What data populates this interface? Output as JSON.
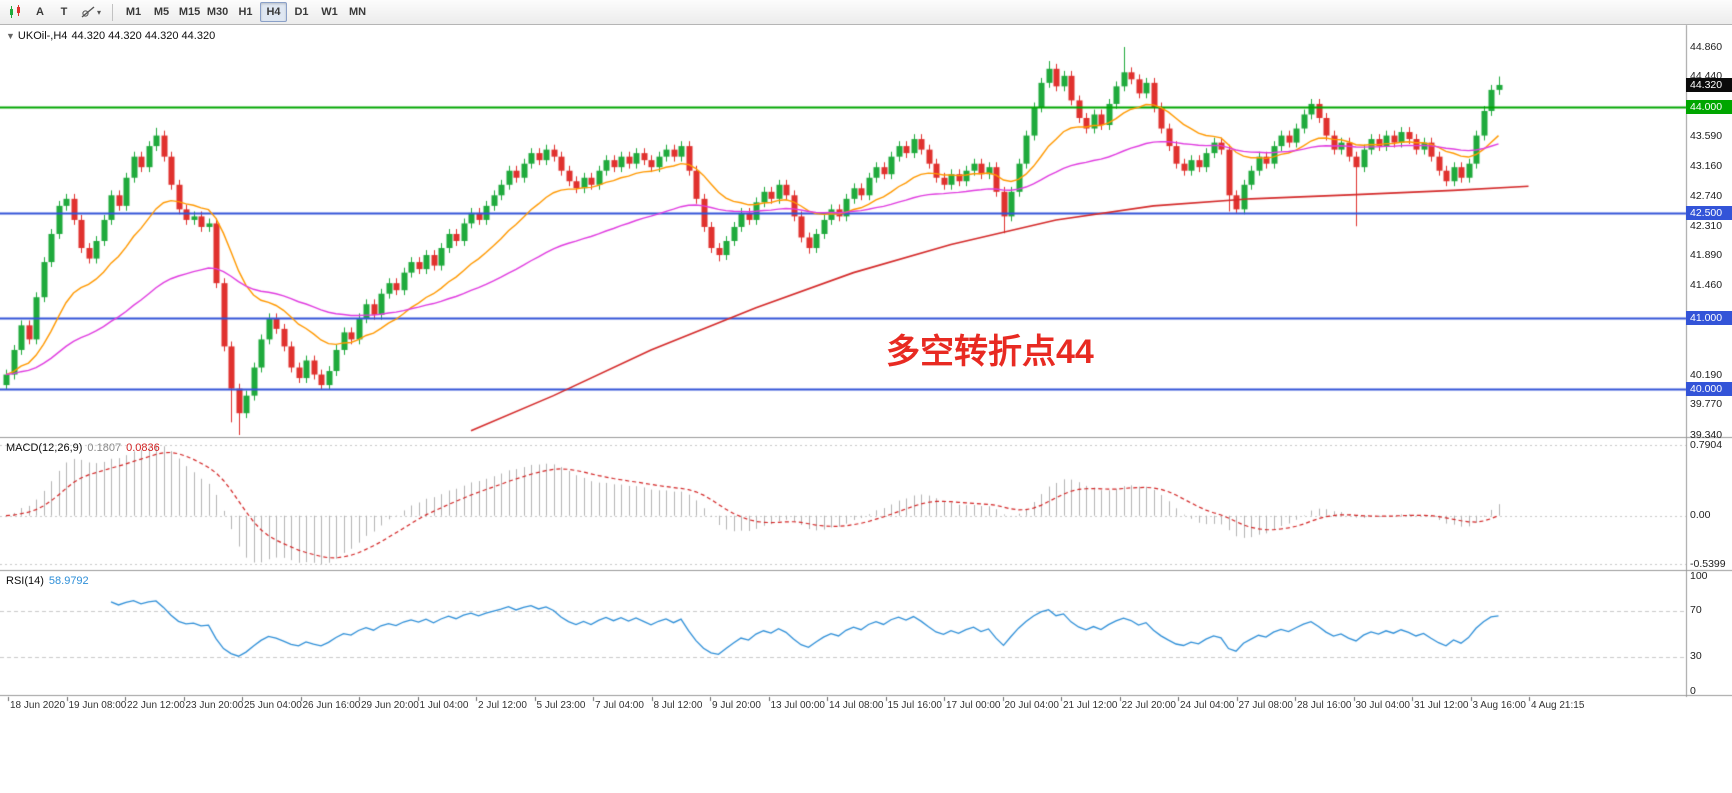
{
  "toolbar": {
    "tools": [
      {
        "name": "charts-icon",
        "type": "icon"
      },
      {
        "name": "text-tool",
        "type": "text",
        "label": "A"
      },
      {
        "name": "text-label-tool",
        "type": "text",
        "label": "T"
      },
      {
        "name": "shapes-tool",
        "type": "icon",
        "dropdown": true
      }
    ],
    "timeframes": [
      "M1",
      "M5",
      "M15",
      "M30",
      "H1",
      "H4",
      "D1",
      "W1",
      "MN"
    ],
    "active_timeframe": "H4"
  },
  "chart_header": {
    "symbol_label": "UKOil-,H4",
    "ohlc": "44.320 44.320 44.320 44.320"
  },
  "annotation": {
    "text": "多空转折点44",
    "color": "#e82a22"
  },
  "price_axis": {
    "ticks": [
      44.86,
      44.44,
      43.59,
      43.16,
      42.74,
      42.31,
      41.89,
      41.46,
      40.19,
      39.77,
      39.34
    ],
    "badges": [
      {
        "name": "last-price",
        "value": "44.320",
        "v": 44.32,
        "bg": "#0a0a0a",
        "fg": "#ffffff"
      },
      {
        "name": "level-44000",
        "value": "44.000",
        "v": 44.0,
        "bg": "#00a600",
        "fg": "#ffffff"
      },
      {
        "name": "level-42500",
        "value": "42.500",
        "v": 42.5,
        "bg": "#3354d8",
        "fg": "#ffffff"
      },
      {
        "name": "level-41000",
        "value": "41.000",
        "v": 41.0,
        "bg": "#3354d8",
        "fg": "#ffffff"
      },
      {
        "name": "level-40000",
        "value": "40.000",
        "v": 40.0,
        "bg": "#3354d8",
        "fg": "#ffffff"
      }
    ]
  },
  "chart_data": {
    "type": "candlestick",
    "title": "UKOil-,H4",
    "symbol": "UKOil-",
    "timeframe": "H4",
    "ylim": [
      39.31,
      45.15
    ],
    "bull_color": "#1faa3c",
    "bear_color": "#e0312e",
    "first_open": 40.05,
    "default_wick": 0.07,
    "closes": [
      40.2,
      40.55,
      40.9,
      40.7,
      41.3,
      41.8,
      42.2,
      42.6,
      42.7,
      42.4,
      42.0,
      41.85,
      42.1,
      42.4,
      42.75,
      42.6,
      43.0,
      43.3,
      43.15,
      43.45,
      43.6,
      43.3,
      42.9,
      42.55,
      42.4,
      42.45,
      42.3,
      42.35,
      41.5,
      40.6,
      40.0,
      39.65,
      39.9,
      40.3,
      40.7,
      41.0,
      40.85,
      40.6,
      40.3,
      40.15,
      40.4,
      40.2,
      40.05,
      40.25,
      40.55,
      40.8,
      40.7,
      41.0,
      41.2,
      41.05,
      41.35,
      41.5,
      41.4,
      41.65,
      41.8,
      41.7,
      41.9,
      41.75,
      42.0,
      42.2,
      42.1,
      42.35,
      42.5,
      42.4,
      42.6,
      42.75,
      42.9,
      43.1,
      43.0,
      43.2,
      43.35,
      43.25,
      43.4,
      43.3,
      43.1,
      42.95,
      42.85,
      43.0,
      42.9,
      43.1,
      43.25,
      43.15,
      43.3,
      43.2,
      43.35,
      43.25,
      43.15,
      43.3,
      43.4,
      43.3,
      43.45,
      43.1,
      42.7,
      42.3,
      42.0,
      41.9,
      42.1,
      42.3,
      42.5,
      42.4,
      42.65,
      42.8,
      42.7,
      42.9,
      42.75,
      42.45,
      42.15,
      42.0,
      42.2,
      42.4,
      42.55,
      42.45,
      42.7,
      42.85,
      42.75,
      43.0,
      43.15,
      43.05,
      43.3,
      43.45,
      43.35,
      43.55,
      43.4,
      43.2,
      43.0,
      42.9,
      43.05,
      42.95,
      43.1,
      43.2,
      43.05,
      43.15,
      42.8,
      42.45,
      42.8,
      43.2,
      43.6,
      44.0,
      44.35,
      44.55,
      44.3,
      44.45,
      44.1,
      43.85,
      43.7,
      43.9,
      43.75,
      44.05,
      44.3,
      44.5,
      44.4,
      44.2,
      44.35,
      44.0,
      43.7,
      43.45,
      43.2,
      43.1,
      43.25,
      43.15,
      43.35,
      43.5,
      43.4,
      42.75,
      42.55,
      42.9,
      43.1,
      43.3,
      43.2,
      43.45,
      43.6,
      43.5,
      43.7,
      43.9,
      44.05,
      43.85,
      43.6,
      43.4,
      43.5,
      43.3,
      43.15,
      43.4,
      43.55,
      43.45,
      43.6,
      43.5,
      43.65,
      43.55,
      43.4,
      43.5,
      43.3,
      43.1,
      42.95,
      43.15,
      43.0,
      43.2,
      43.6,
      43.95,
      44.25,
      44.32
    ],
    "extremes": [
      {
        "i": 20,
        "high": 43.71
      },
      {
        "i": 30,
        "low": 39.52
      },
      {
        "i": 31,
        "low": 39.34
      },
      {
        "i": 95,
        "low": 41.81
      },
      {
        "i": 107,
        "low": 41.92
      },
      {
        "i": 133,
        "low": 42.21
      },
      {
        "i": 139,
        "high": 44.66
      },
      {
        "i": 149,
        "high": 44.86
      },
      {
        "i": 163,
        "low": 42.52
      },
      {
        "i": 164,
        "low": 42.5
      },
      {
        "i": 180,
        "low": 42.31
      },
      {
        "i": 199,
        "high": 44.44
      }
    ],
    "levels": [
      {
        "v": 44.0,
        "color": "#00a600",
        "width": 2
      },
      {
        "v": 42.5,
        "color": "#3354d8",
        "width": 2
      },
      {
        "v": 41.0,
        "color": "#3354d8",
        "width": 2
      },
      {
        "v": 40.0,
        "color": "#3354d8",
        "width": 2
      }
    ],
    "moving_averages": [
      {
        "name": "fast-ma",
        "color": "#ff9900",
        "period": 16
      },
      {
        "name": "medium-ma",
        "color": "#e03ce0",
        "period": 50
      }
    ],
    "slow_ma": {
      "name": "slow-ma",
      "color": "#d42a2a",
      "points": [
        [
          62,
          39.4
        ],
        [
          73,
          39.9
        ],
        [
          86,
          40.55
        ],
        [
          100,
          41.15
        ],
        [
          113,
          41.65
        ],
        [
          126,
          42.05
        ],
        [
          140,
          42.4
        ],
        [
          153,
          42.6
        ],
        [
          166,
          42.7
        ],
        [
          180,
          42.76
        ],
        [
          193,
          42.82
        ],
        [
          203,
          42.88
        ]
      ]
    },
    "time_labels": [
      "18 Jun 2020",
      "19 Jun 08:00",
      "22 Jun 12:00",
      "23 Jun 20:00",
      "25 Jun 04:00",
      "26 Jun 16:00",
      "29 Jun 20:00",
      "1 Jul 04:00",
      "2 Jul 12:00",
      "5 Jul 23:00",
      "7 Jul 04:00",
      "8 Jul 12:00",
      "9 Jul 20:00",
      "13 Jul 00:00",
      "14 Jul 08:00",
      "15 Jul 16:00",
      "17 Jul 00:00",
      "20 Jul 04:00",
      "21 Jul 12:00",
      "22 Jul 20:00",
      "24 Jul 04:00",
      "27 Jul 08:00",
      "28 Jul 16:00",
      "30 Jul 04:00",
      "31 Jul 12:00",
      "3 Aug 16:00",
      "4 Aug 21:15"
    ],
    "indicators": {
      "macd": {
        "label": "MACD(12,26,9)",
        "value_main": "0.1807",
        "value_signal": "0.0836",
        "fast": 12,
        "slow": 26,
        "signal": 9,
        "axis_labels": [
          "0.7904",
          "0.00",
          "-0.5399"
        ],
        "axis_max": 0.7904,
        "axis_min": -0.5399,
        "hist_color": "#b3b3b3",
        "signal_color": "#d32424"
      },
      "rsi": {
        "label": "RSI(14)",
        "value": "58.9792",
        "period": 14,
        "axis_labels": [
          "100",
          "70",
          "30",
          "0"
        ],
        "levels": [
          70,
          30
        ],
        "color": "#2e8fd8"
      }
    }
  }
}
